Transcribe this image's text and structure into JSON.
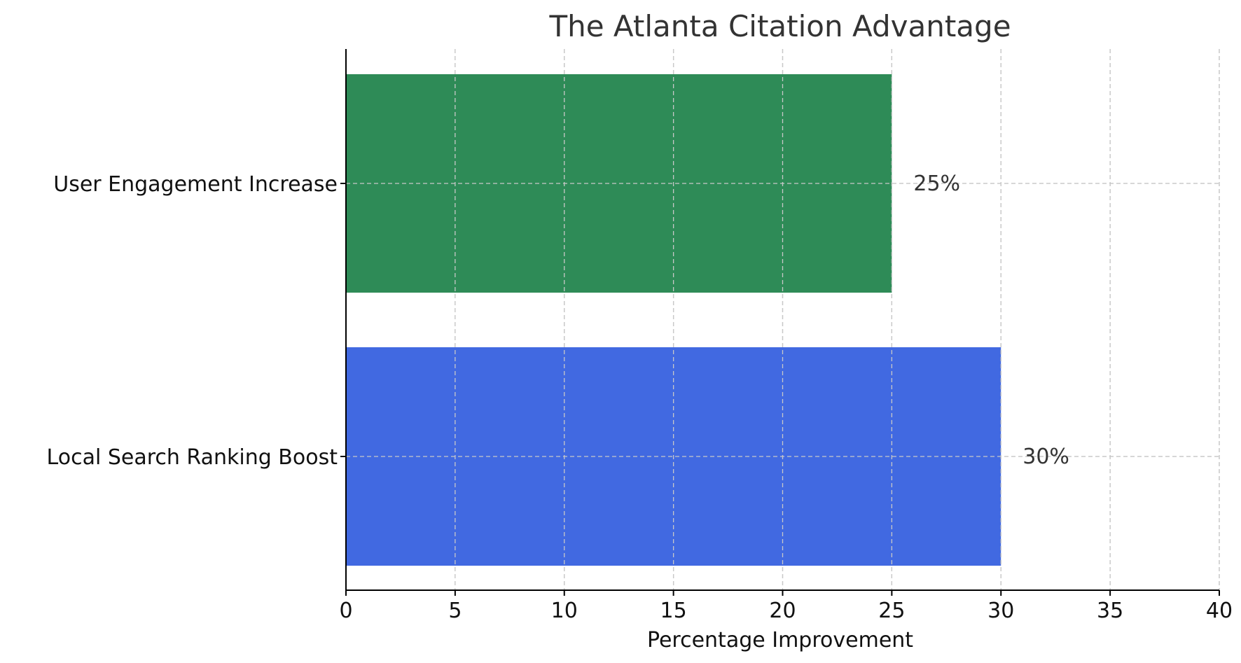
{
  "chart_data": {
    "type": "bar",
    "orientation": "horizontal",
    "title": "The Atlanta Citation Advantage",
    "xlabel": "Percentage Improvement",
    "ylabel": "",
    "categories": [
      "Local Search Ranking Boost",
      "User Engagement Increase"
    ],
    "values": [
      30,
      25
    ],
    "value_labels": [
      "30%",
      "25%"
    ],
    "colors": [
      "#4169e1",
      "#2e8b57"
    ],
    "xlim": [
      0,
      40
    ],
    "xticks": [
      0,
      5,
      10,
      15,
      20,
      25,
      30,
      35,
      40
    ],
    "xtick_labels": [
      "0",
      "5",
      "10",
      "15",
      "20",
      "25",
      "30",
      "35",
      "40"
    ],
    "grid": true
  }
}
